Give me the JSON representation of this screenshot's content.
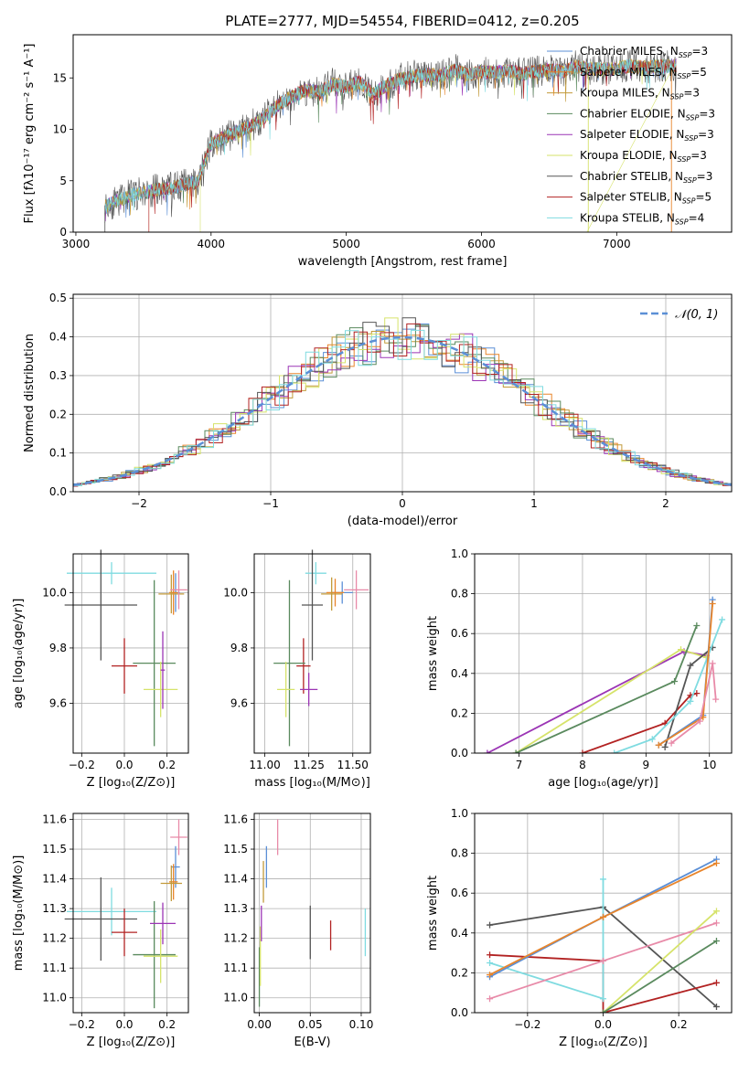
{
  "colors": {
    "chabrier_miles": "#5b8fd6",
    "salpeter_miles": "#e8852b",
    "kroupa_miles": "#c29a3a",
    "chabrier_elodie": "#5a8a5e",
    "salpeter_elodie": "#9b35b5",
    "kroupa_elodie": "#d6e36a",
    "chabrier_stelib": "#555555",
    "salpeter_stelib": "#b22222",
    "kroupa_stelib": "#7fdbe0",
    "pink": "#e88aa8"
  },
  "chart_data": [
    {
      "id": "spectrum",
      "type": "line",
      "title": "PLATE=2777, MJD=54554, FIBERID=0412, z=0.205",
      "xlabel": "wavelength [Angstrom, rest frame]",
      "ylabel": "Flux [fλ10⁻¹⁷ erg cm⁻² s⁻¹ A⁻¹]",
      "xlim": [
        2980,
        7850
      ],
      "ylim": [
        0,
        19.2
      ],
      "xticks": [
        "3000",
        "4000",
        "5000",
        "6000",
        "7000"
      ],
      "yticks": [
        "0",
        "5",
        "10",
        "15"
      ],
      "legend_position": "right",
      "legend": [
        {
          "label": "Chabrier MILES, N",
          "sub": "SSP",
          "suffix": "=3"
        },
        {
          "label": "Salpeter MILES, N",
          "sub": "SSP",
          "suffix": "=5"
        },
        {
          "label": "Kroupa MILES, N",
          "sub": "SSP",
          "suffix": "=3"
        },
        {
          "label": "Chabrier ELODIE, N",
          "sub": "SSP",
          "suffix": "=3"
        },
        {
          "label": "Salpeter ELODIE, N",
          "sub": "SSP",
          "suffix": "=3"
        },
        {
          "label": "Kroupa ELODIE, N",
          "sub": "SSP",
          "suffix": "=3"
        },
        {
          "label": "Chabrier STELIB, N",
          "sub": "SSP",
          "suffix": "=3"
        },
        {
          "label": "Salpeter STELIB, N",
          "sub": "SSP",
          "suffix": "=5"
        },
        {
          "label": "Kroupa STELIB, N",
          "sub": "SSP",
          "suffix": "=4"
        }
      ],
      "continuum": [
        [
          3200,
          2.4
        ],
        [
          3400,
          3.6
        ],
        [
          3600,
          4.1
        ],
        [
          3700,
          4.3
        ],
        [
          3800,
          4.6
        ],
        [
          3900,
          4.9
        ],
        [
          4000,
          8.6
        ],
        [
          4100,
          9.2
        ],
        [
          4200,
          9.8
        ],
        [
          4300,
          10.4
        ],
        [
          4400,
          11.2
        ],
        [
          4500,
          12.4
        ],
        [
          4600,
          13.2
        ],
        [
          4700,
          13.8
        ],
        [
          4800,
          13.6
        ],
        [
          4900,
          14.4
        ],
        [
          5000,
          14.1
        ],
        [
          5100,
          14.6
        ],
        [
          5200,
          13.4
        ],
        [
          5300,
          14.3
        ],
        [
          5400,
          14.9
        ],
        [
          5500,
          15.2
        ],
        [
          5600,
          15.3
        ],
        [
          5700,
          15.2
        ],
        [
          5800,
          15.8
        ],
        [
          5900,
          15.3
        ],
        [
          6000,
          15.6
        ],
        [
          6100,
          15.5
        ],
        [
          6200,
          15.7
        ],
        [
          6300,
          15.4
        ],
        [
          6400,
          15.6
        ],
        [
          6500,
          15.8
        ],
        [
          6600,
          15.6
        ],
        [
          6700,
          16.1
        ],
        [
          6800,
          15.9
        ],
        [
          6900,
          15.8
        ],
        [
          7000,
          15.9
        ],
        [
          7100,
          16.2
        ],
        [
          7200,
          16.0
        ],
        [
          7300,
          16.1
        ],
        [
          7400,
          16.2
        ]
      ]
    },
    {
      "id": "residuals",
      "type": "histogram",
      "xlabel": "(data-model)/error",
      "ylabel": "Normed distribution",
      "xlim": [
        -2.5,
        2.5
      ],
      "ylim": [
        0,
        0.51
      ],
      "xticks": [
        "−2",
        "−1",
        "0",
        "1",
        "2"
      ],
      "yticks": [
        "0.0",
        "0.1",
        "0.2",
        "0.3",
        "0.4",
        "0.5"
      ],
      "grid": true,
      "legend_position": "top-right",
      "legend_label": "𝒩(0, 1)",
      "bin_width": 0.1
    },
    {
      "id": "age_vs_Z",
      "type": "errorbar",
      "xlabel": "Z [log₁₀(Z/Z⊙)]",
      "ylabel": "age  [log₁₀(age/yr)]",
      "xlim": [
        -0.24,
        0.3
      ],
      "ylim": [
        9.42,
        10.14
      ],
      "xticks": [
        "−0.2",
        "0.0",
        "0.2"
      ],
      "yticks": [
        "9.6",
        "9.8",
        "10.0"
      ],
      "grid": true,
      "points": [
        {
          "series": "kroupa_stelib",
          "x": -0.06,
          "xerr": 0.21,
          "y": 10.07,
          "yerr": 0.04
        },
        {
          "series": "chabrier_stelib",
          "x": -0.11,
          "xerr": 0.17,
          "y": 9.955,
          "yerr": 0.2
        },
        {
          "series": "salpeter_stelib",
          "x": 0.0,
          "xerr": 0.06,
          "y": 9.735,
          "yerr": 0.1
        },
        {
          "series": "chabrier_elodie",
          "x": 0.14,
          "xerr": 0.1,
          "y": 9.745,
          "yerr": 0.3
        },
        {
          "series": "kroupa_elodie",
          "x": 0.17,
          "xerr": 0.08,
          "y": 9.65,
          "yerr": 0.1
        },
        {
          "series": "salpeter_elodie",
          "x": 0.18,
          "xerr": 0.01,
          "y": 9.72,
          "yerr": 0.14
        },
        {
          "series": "chabrier_miles",
          "x": 0.24,
          "xerr": 0.02,
          "y": 10.0,
          "yerr": 0.07
        },
        {
          "series": "salpeter_miles",
          "x": 0.23,
          "xerr": 0.02,
          "y": 10.0,
          "yerr": 0.08
        },
        {
          "series": "kroupa_miles",
          "x": 0.22,
          "xerr": 0.06,
          "y": 9.995,
          "yerr": 0.07
        },
        {
          "series": "pink",
          "x": 0.255,
          "xerr": 0.04,
          "y": 10.01,
          "yerr": 0.07
        }
      ]
    },
    {
      "id": "age_vs_mass",
      "type": "errorbar",
      "xlabel": "mass [log₁₀(M/M⊙)]",
      "xlim": [
        10.94,
        11.6
      ],
      "ylim": [
        9.42,
        10.14
      ],
      "xticks": [
        "11.00",
        "11.25",
        "11.50"
      ],
      "yticks": [
        "9.6",
        "9.8",
        "10.0"
      ],
      "grid": true,
      "points": [
        {
          "series": "kroupa_stelib",
          "x": 11.29,
          "xerr": 0.06,
          "y": 10.07,
          "yerr": 0.04
        },
        {
          "series": "chabrier_stelib",
          "x": 11.27,
          "xerr": 0.06,
          "y": 9.955,
          "yerr": 0.2
        },
        {
          "series": "salpeter_stelib",
          "x": 11.22,
          "xerr": 0.04,
          "y": 9.735,
          "yerr": 0.1
        },
        {
          "series": "chabrier_elodie",
          "x": 11.14,
          "xerr": 0.09,
          "y": 9.745,
          "yerr": 0.3
        },
        {
          "series": "kroupa_elodie",
          "x": 11.12,
          "xerr": 0.05,
          "y": 9.65,
          "yerr": 0.1
        },
        {
          "series": "salpeter_elodie",
          "x": 11.25,
          "xerr": 0.05,
          "y": 9.65,
          "yerr": 0.06
        },
        {
          "series": "chabrier_miles",
          "x": 11.44,
          "xerr": 0.06,
          "y": 10.0,
          "yerr": 0.04
        },
        {
          "series": "salpeter_miles",
          "x": 11.4,
          "xerr": 0.05,
          "y": 10.0,
          "yerr": 0.05
        },
        {
          "series": "kroupa_miles",
          "x": 11.38,
          "xerr": 0.06,
          "y": 9.995,
          "yerr": 0.06
        },
        {
          "series": "pink",
          "x": 11.52,
          "xerr": 0.07,
          "y": 10.01,
          "yerr": 0.07
        }
      ]
    },
    {
      "id": "massweight_vs_age",
      "type": "line",
      "xlabel": "age  [log₁₀(age/yr)]",
      "ylabel": "mass weight",
      "xlim": [
        6.3,
        10.35
      ],
      "ylim": [
        0,
        1
      ],
      "xticks": [
        "7",
        "8",
        "9",
        "10"
      ],
      "yticks": [
        "0.0",
        "0.2",
        "0.4",
        "0.6",
        "0.8",
        "1.0"
      ],
      "grid": true,
      "series": [
        {
          "key": "salpeter_elodie",
          "points": [
            [
              6.5,
              0.0
            ],
            [
              9.6,
              0.51
            ],
            [
              9.95,
              0.49
            ]
          ]
        },
        {
          "key": "kroupa_elodie",
          "points": [
            [
              6.95,
              0.0
            ],
            [
              9.55,
              0.52
            ],
            [
              9.95,
              0.48
            ]
          ]
        },
        {
          "key": "chabrier_elodie",
          "points": [
            [
              6.95,
              0.0
            ],
            [
              9.45,
              0.36
            ],
            [
              9.8,
              0.64
            ]
          ]
        },
        {
          "key": "salpeter_stelib",
          "points": [
            [
              8.0,
              0.0
            ],
            [
              9.3,
              0.15
            ],
            [
              9.7,
              0.29
            ],
            [
              9.8,
              0.3
            ]
          ]
        },
        {
          "key": "chabrier_stelib",
          "points": [
            [
              9.3,
              0.03
            ],
            [
              9.7,
              0.44
            ],
            [
              10.05,
              0.53
            ]
          ]
        },
        {
          "key": "kroupa_stelib",
          "points": [
            [
              8.5,
              0.0
            ],
            [
              9.1,
              0.07
            ],
            [
              9.7,
              0.26
            ],
            [
              10.2,
              0.67
            ]
          ]
        },
        {
          "key": "chabrier_miles",
          "points": [
            [
              9.2,
              0.04
            ],
            [
              9.9,
              0.19
            ],
            [
              10.05,
              0.77
            ]
          ]
        },
        {
          "key": "salpeter_miles",
          "points": [
            [
              9.2,
              0.04
            ],
            [
              9.9,
              0.18
            ],
            [
              10.05,
              0.75
            ]
          ]
        },
        {
          "key": "pink",
          "points": [
            [
              9.4,
              0.05
            ],
            [
              9.85,
              0.16
            ],
            [
              10.05,
              0.45
            ],
            [
              10.1,
              0.27
            ]
          ]
        }
      ]
    },
    {
      "id": "mass_vs_Z",
      "type": "errorbar",
      "xlabel": "Z [log₁₀(Z/Z⊙)]",
      "ylabel": "mass [log₁₀(M/M⊙)]",
      "xlim": [
        -0.24,
        0.3
      ],
      "ylim": [
        10.95,
        11.62
      ],
      "xticks": [
        "−0.2",
        "0.0",
        "0.2"
      ],
      "yticks": [
        "11.0",
        "11.1",
        "11.2",
        "11.3",
        "11.4",
        "11.5",
        "11.6"
      ],
      "grid": true,
      "points": [
        {
          "series": "kroupa_stelib",
          "x": -0.06,
          "xerr": 0.21,
          "y": 11.29,
          "yerr": 0.08
        },
        {
          "series": "chabrier_stelib",
          "x": -0.11,
          "xerr": 0.17,
          "y": 11.265,
          "yerr": 0.14
        },
        {
          "series": "salpeter_stelib",
          "x": 0.0,
          "xerr": 0.06,
          "y": 11.22,
          "yerr": 0.08
        },
        {
          "series": "chabrier_elodie",
          "x": 0.14,
          "xerr": 0.1,
          "y": 11.145,
          "yerr": 0.18
        },
        {
          "series": "kroupa_elodie",
          "x": 0.17,
          "xerr": 0.08,
          "y": 11.14,
          "yerr": 0.09
        },
        {
          "series": "salpeter_elodie",
          "x": 0.18,
          "xerr": 0.06,
          "y": 11.25,
          "yerr": 0.07
        },
        {
          "series": "chabrier_miles",
          "x": 0.24,
          "xerr": 0.02,
          "y": 11.44,
          "yerr": 0.07
        },
        {
          "series": "salpeter_miles",
          "x": 0.23,
          "xerr": 0.02,
          "y": 11.39,
          "yerr": 0.06
        },
        {
          "series": "kroupa_miles",
          "x": 0.22,
          "xerr": 0.05,
          "y": 11.385,
          "yerr": 0.06
        },
        {
          "series": "pink",
          "x": 0.255,
          "xerr": 0.04,
          "y": 11.54,
          "yerr": 0.06
        }
      ]
    },
    {
      "id": "mass_vs_ebv",
      "type": "errorbar",
      "xlabel": "E(B-V)",
      "xlim": [
        -0.005,
        0.109
      ],
      "ylim": [
        10.95,
        11.62
      ],
      "xticks": [
        "0.00",
        "0.05",
        "0.10"
      ],
      "yticks": [
        "11.0",
        "11.1",
        "11.2",
        "11.3",
        "11.4",
        "11.5",
        "11.6"
      ],
      "grid": true,
      "points": [
        {
          "series": "chabrier_elodie",
          "x": 0.0,
          "xerr": 0,
          "y": 11.07,
          "yerr": 0.1
        },
        {
          "series": "kroupa_elodie",
          "x": 0.001,
          "xerr": 0,
          "y": 11.14,
          "yerr": 0.1
        },
        {
          "series": "salpeter_elodie",
          "x": 0.002,
          "xerr": 0,
          "y": 11.25,
          "yerr": 0.06
        },
        {
          "series": "kroupa_miles",
          "x": 0.004,
          "xerr": 0,
          "y": 11.39,
          "yerr": 0.07
        },
        {
          "series": "chabrier_miles",
          "x": 0.007,
          "xerr": 0,
          "y": 11.44,
          "yerr": 0.07
        },
        {
          "series": "pink",
          "x": 0.018,
          "xerr": 0,
          "y": 11.54,
          "yerr": 0.06
        },
        {
          "series": "chabrier_stelib",
          "x": 0.05,
          "xerr": 0,
          "y": 11.22,
          "yerr": 0.09
        },
        {
          "series": "salpeter_stelib",
          "x": 0.07,
          "xerr": 0,
          "y": 11.21,
          "yerr": 0.05
        },
        {
          "series": "kroupa_stelib",
          "x": 0.104,
          "xerr": 0,
          "y": 11.22,
          "yerr": 0.08
        }
      ]
    },
    {
      "id": "massweight_vs_Z",
      "type": "line",
      "xlabel": "Z [log₁₀(Z/Z⊙)]",
      "ylabel": "mass weight",
      "xlim": [
        -0.34,
        0.34
      ],
      "ylim": [
        0,
        1
      ],
      "xticks": [
        "−0.2",
        "0.0",
        "0.2"
      ],
      "yticks": [
        "0.0",
        "0.2",
        "0.4",
        "0.6",
        "0.8",
        "1.0"
      ],
      "grid": true,
      "series": [
        {
          "key": "chabrier_stelib",
          "points": [
            [
              -0.3,
              0.44
            ],
            [
              0.0,
              0.53
            ],
            [
              0.3,
              0.03
            ]
          ]
        },
        {
          "key": "salpeter_stelib",
          "points": [
            [
              -0.3,
              0.29
            ],
            [
              0.0,
              0.26
            ],
            [
              0.0,
              0.0
            ],
            [
              0.3,
              0.15
            ]
          ]
        },
        {
          "key": "kroupa_stelib",
          "points": [
            [
              -0.3,
              0.25
            ],
            [
              0.0,
              0.07
            ],
            [
              0.0,
              0.67
            ]
          ]
        },
        {
          "key": "chabrier_miles",
          "points": [
            [
              -0.3,
              0.18
            ],
            [
              0.0,
              0.48
            ],
            [
              0.3,
              0.77
            ]
          ]
        },
        {
          "key": "salpeter_miles",
          "points": [
            [
              -0.3,
              0.19
            ],
            [
              0.0,
              0.48
            ],
            [
              0.3,
              0.75
            ]
          ]
        },
        {
          "key": "pink",
          "points": [
            [
              -0.3,
              0.07
            ],
            [
              0.0,
              0.26
            ],
            [
              0.3,
              0.45
            ]
          ]
        },
        {
          "key": "kroupa_elodie",
          "points": [
            [
              0.0,
              0.0
            ],
            [
              0.3,
              0.51
            ]
          ]
        },
        {
          "key": "chabrier_elodie",
          "points": [
            [
              0.0,
              0.0
            ],
            [
              0.3,
              0.36
            ]
          ]
        }
      ]
    }
  ]
}
